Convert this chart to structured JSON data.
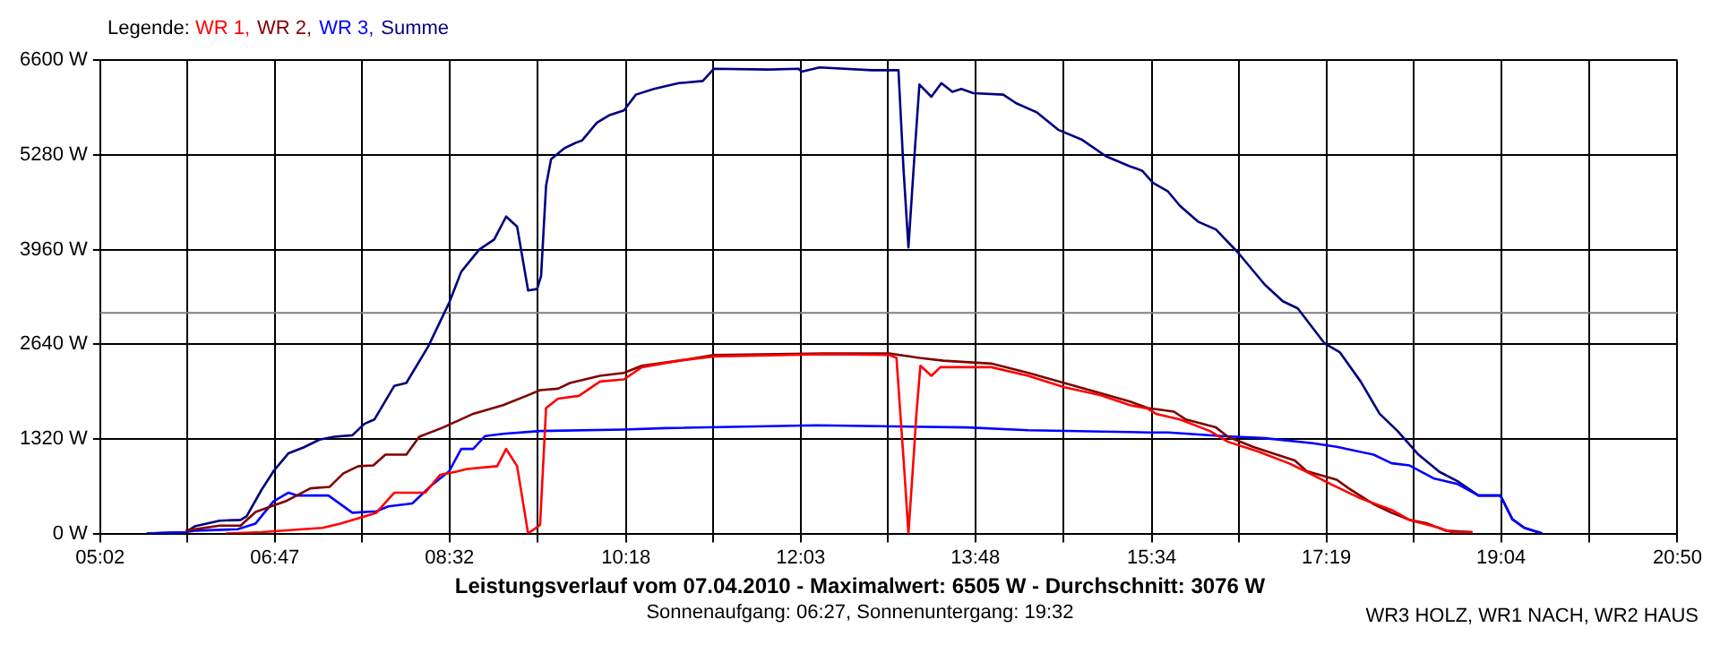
{
  "chart_data": {
    "type": "line",
    "title": "Leistungsverlauf vom 07.04.2010 - Maximalwert: 6505 W - Durchschnitt: 3076 W",
    "subtitle": "Sonnenaufgang: 06:27, Sonnenuntergang: 19:32",
    "annotations": [
      "WR3 HOLZ, WR1 NACH, WR2 HAUS"
    ],
    "legend_title": "Legende:",
    "legend": "top left",
    "grid": true,
    "xlim": [
      5.0333,
      20.8333
    ],
    "xticks": [
      {
        "value": 5.0333,
        "label": "05:02"
      },
      {
        "value": 5.9083,
        "label": null
      },
      {
        "value": 6.7833,
        "label": "06:47"
      },
      {
        "value": 7.6583,
        "label": null
      },
      {
        "value": 8.5333,
        "label": "08:32"
      },
      {
        "value": 9.4167,
        "label": null
      },
      {
        "value": 10.3,
        "label": "10:18"
      },
      {
        "value": 11.175,
        "label": null
      },
      {
        "value": 12.05,
        "label": "12:03"
      },
      {
        "value": 12.925,
        "label": null
      },
      {
        "value": 13.8,
        "label": "13:48"
      },
      {
        "value": 14.6833,
        "label": null
      },
      {
        "value": 15.5667,
        "label": "15:34"
      },
      {
        "value": 16.4417,
        "label": null
      },
      {
        "value": 17.3167,
        "label": "17:19"
      },
      {
        "value": 18.1917,
        "label": null
      },
      {
        "value": 19.0667,
        "label": "19:04"
      },
      {
        "value": 19.95,
        "label": null
      },
      {
        "value": 20.8333,
        "label": "20:50"
      }
    ],
    "ylim": [
      0,
      6600
    ],
    "yticks": [
      {
        "value": 0,
        "label": "0 W"
      },
      {
        "value": 1320,
        "label": "1320 W"
      },
      {
        "value": 2640,
        "label": "2640 W"
      },
      {
        "value": 3960,
        "label": "3960 W"
      },
      {
        "value": 5280,
        "label": "5280 W"
      },
      {
        "value": 6600,
        "label": "6600 W"
      }
    ],
    "ref_lines": [
      {
        "axis": "y",
        "value": 3076,
        "color": "#808080"
      }
    ],
    "series": [
      {
        "name": "WR 1,",
        "color": "#ff0000",
        "x": [
          6.29,
          6.65,
          7.26,
          7.44,
          7.68,
          7.8,
          7.98,
          8.29,
          8.44,
          8.59,
          8.71,
          9.01,
          9.1,
          9.21,
          9.32,
          9.44,
          9.5,
          9.62,
          9.83,
          10.04,
          10.28,
          10.46,
          10.83,
          11.18,
          12.27,
          12.94,
          13.01,
          13.09,
          13.13,
          13.18,
          13.21,
          13.25,
          13.36,
          13.45,
          13.57,
          13.96,
          14.33,
          14.69,
          15.05,
          15.35,
          15.53,
          15.61,
          15.85,
          16.15,
          16.33,
          16.64,
          16.94,
          17.12,
          17.36,
          17.66,
          17.97,
          18.15,
          18.45,
          18.57,
          18.78
        ],
        "values": [
          0,
          20,
          80,
          140,
          240,
          290,
          570,
          570,
          820,
          860,
          900,
          940,
          1180,
          940,
          0,
          120,
          1750,
          1880,
          1920,
          2120,
          2150,
          2320,
          2410,
          2470,
          2500,
          2490,
          2450,
          860,
          0,
          1020,
          1670,
          2340,
          2200,
          2320,
          2320,
          2320,
          2200,
          2040,
          1930,
          1790,
          1740,
          1670,
          1590,
          1430,
          1280,
          1140,
          980,
          860,
          690,
          490,
          330,
          190,
          80,
          20,
          20
        ]
      },
      {
        "name": "WR 2,",
        "color": "#800000",
        "x": [
          5.89,
          6.23,
          6.44,
          6.59,
          6.89,
          7.14,
          7.33,
          7.47,
          7.62,
          7.77,
          7.89,
          8.1,
          8.23,
          8.47,
          8.77,
          9.07,
          9.32,
          9.44,
          9.62,
          9.74,
          10.04,
          10.28,
          10.46,
          10.83,
          11.18,
          12.27,
          12.94,
          13.24,
          13.48,
          13.96,
          14.33,
          14.69,
          15.05,
          15.35,
          15.53,
          15.79,
          15.91,
          16.21,
          16.33,
          16.58,
          16.82,
          17.0,
          17.12,
          17.42,
          17.54,
          17.79,
          17.97,
          18.15,
          18.33,
          18.51,
          18.78
        ],
        "values": [
          40,
          110,
          110,
          300,
          450,
          630,
          650,
          840,
          940,
          950,
          1100,
          1100,
          1350,
          1480,
          1670,
          1790,
          1930,
          2000,
          2020,
          2100,
          2200,
          2240,
          2340,
          2410,
          2490,
          2510,
          2510,
          2450,
          2410,
          2370,
          2240,
          2100,
          1960,
          1840,
          1750,
          1700,
          1590,
          1480,
          1350,
          1210,
          1100,
          1020,
          870,
          750,
          630,
          410,
          290,
          190,
          140,
          40,
          20
        ]
      },
      {
        "name": "WR 3,",
        "color": "#0000ff",
        "x": [
          5.5,
          5.89,
          5.98,
          6.41,
          6.59,
          6.77,
          6.92,
          7.01,
          7.32,
          7.56,
          7.8,
          7.92,
          8.16,
          8.35,
          8.53,
          8.65,
          8.77,
          8.89,
          9.07,
          9.44,
          10.28,
          10.7,
          12.21,
          13.72,
          14.33,
          15.53,
          15.73,
          16.27,
          16.7,
          17.18,
          17.42,
          17.79,
          17.97,
          18.15,
          18.39,
          18.63,
          18.84,
          19.06,
          19.18,
          19.3,
          19.48
        ],
        "values": [
          0,
          20,
          40,
          60,
          140,
          450,
          570,
          530,
          530,
          290,
          310,
          380,
          420,
          670,
          870,
          1180,
          1180,
          1360,
          1390,
          1430,
          1450,
          1470,
          1510,
          1480,
          1440,
          1410,
          1410,
          1360,
          1330,
          1260,
          1210,
          1100,
          980,
          950,
          770,
          690,
          530,
          530,
          200,
          80,
          0
        ]
      },
      {
        "name": "Summe",
        "color": "#000080",
        "x": [
          5.5,
          5.89,
          5.98,
          6.23,
          6.44,
          6.5,
          6.65,
          6.77,
          6.92,
          7.07,
          7.23,
          7.38,
          7.56,
          7.68,
          7.78,
          7.98,
          8.1,
          8.32,
          8.53,
          8.65,
          8.83,
          8.98,
          9.1,
          9.21,
          9.32,
          9.41,
          9.45,
          9.5,
          9.55,
          9.68,
          9.8,
          9.86,
          10.01,
          10.13,
          10.28,
          10.4,
          10.58,
          10.83,
          11.07,
          11.18,
          11.73,
          12.03,
          12.06,
          12.24,
          12.76,
          13.03,
          13.08,
          13.13,
          13.19,
          13.24,
          13.36,
          13.46,
          13.57,
          13.66,
          13.78,
          14.08,
          14.21,
          14.42,
          14.63,
          14.87,
          15.11,
          15.35,
          15.47,
          15.58,
          15.73,
          15.85,
          16.03,
          16.21,
          16.43,
          16.7,
          16.88,
          17.03,
          17.3,
          17.45,
          17.66,
          17.85,
          18.03,
          18.24,
          18.45,
          18.63,
          18.84,
          19.06,
          19.18,
          19.3,
          19.48
        ],
        "values": [
          0,
          20,
          100,
          180,
          190,
          240,
          610,
          870,
          1120,
          1200,
          1310,
          1350,
          1370,
          1530,
          1590,
          2060,
          2100,
          2610,
          3220,
          3650,
          3960,
          4100,
          4420,
          4280,
          3390,
          3410,
          3590,
          4850,
          5220,
          5370,
          5450,
          5480,
          5730,
          5830,
          5900,
          6120,
          6200,
          6280,
          6310,
          6480,
          6470,
          6480,
          6440,
          6500,
          6460,
          6460,
          5100,
          3990,
          5260,
          6260,
          6090,
          6280,
          6160,
          6200,
          6140,
          6120,
          6000,
          5870,
          5630,
          5490,
          5260,
          5120,
          5060,
          4890,
          4770,
          4570,
          4350,
          4240,
          3920,
          3470,
          3240,
          3140,
          2650,
          2530,
          2120,
          1670,
          1430,
          1100,
          860,
          730,
          530,
          530,
          200,
          80,
          0
        ]
      }
    ]
  }
}
